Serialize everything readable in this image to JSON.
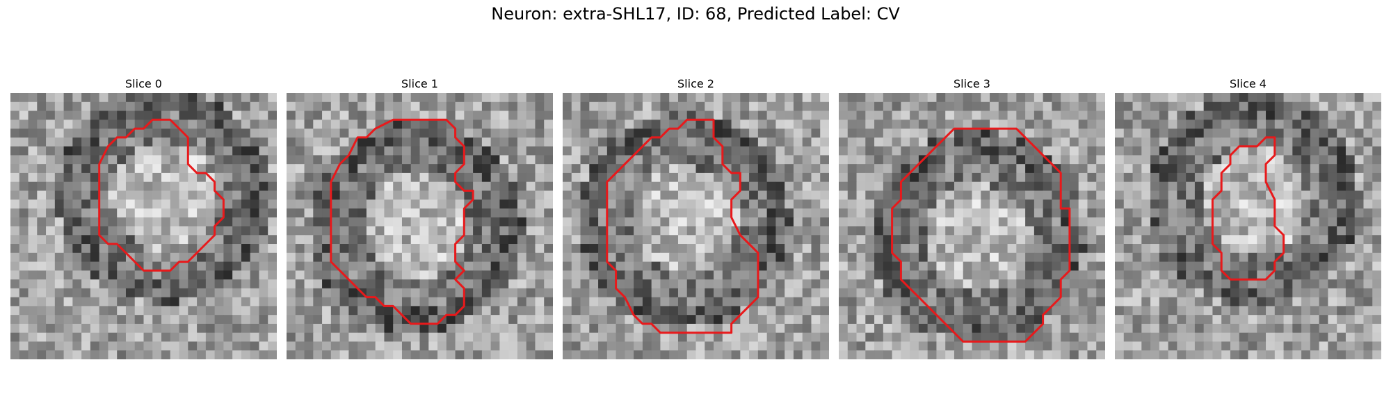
{
  "figure": {
    "title": "Neuron: extra-SHL17, ID: 68, Predicted Label: CV"
  },
  "contour_color": "#e8191b",
  "grid_cells": 30,
  "slices": [
    {
      "label": "Slice 0",
      "contour": [
        [
          10,
          8
        ],
        [
          11,
          6
        ],
        [
          12,
          5
        ],
        [
          13,
          5
        ],
        [
          14,
          4
        ],
        [
          15,
          4
        ],
        [
          16,
          3
        ],
        [
          18,
          3
        ],
        [
          19,
          4
        ],
        [
          20,
          5
        ],
        [
          20,
          8
        ],
        [
          21,
          9
        ],
        [
          22,
          9
        ],
        [
          23,
          10
        ],
        [
          23,
          11
        ],
        [
          24,
          12
        ],
        [
          24,
          14
        ],
        [
          23,
          15
        ],
        [
          23,
          16
        ],
        [
          22,
          17
        ],
        [
          21,
          18
        ],
        [
          20,
          19
        ],
        [
          19,
          19
        ],
        [
          18,
          20
        ],
        [
          15,
          20
        ],
        [
          14,
          19
        ],
        [
          13,
          18
        ],
        [
          12,
          17
        ],
        [
          11,
          17
        ],
        [
          10,
          16
        ],
        [
          10,
          9
        ]
      ],
      "seed": 11
    },
    {
      "label": "Slice 1",
      "contour": [
        [
          5,
          10
        ],
        [
          6,
          8
        ],
        [
          7,
          7
        ],
        [
          8,
          5
        ],
        [
          9,
          5
        ],
        [
          10,
          4
        ],
        [
          12,
          3
        ],
        [
          12,
          3
        ],
        [
          18,
          3
        ],
        [
          19,
          4
        ],
        [
          19,
          5
        ],
        [
          20,
          6
        ],
        [
          20,
          8
        ],
        [
          19,
          9
        ],
        [
          19,
          10
        ],
        [
          20,
          11
        ],
        [
          21,
          11
        ],
        [
          21,
          12
        ],
        [
          20,
          13
        ],
        [
          20,
          16
        ],
        [
          19,
          17
        ],
        [
          19,
          19
        ],
        [
          20,
          20
        ],
        [
          19,
          21
        ],
        [
          20,
          22
        ],
        [
          20,
          23
        ],
        [
          20,
          24
        ],
        [
          19,
          25
        ],
        [
          18,
          25
        ],
        [
          17,
          26
        ],
        [
          14,
          26
        ],
        [
          13,
          25
        ],
        [
          12,
          24
        ],
        [
          11,
          24
        ],
        [
          10,
          23
        ],
        [
          9,
          23
        ],
        [
          8,
          22
        ],
        [
          7,
          21
        ],
        [
          6,
          20
        ],
        [
          5,
          19
        ],
        [
          5,
          12
        ]
      ],
      "seed": 23
    },
    {
      "label": "Slice 2",
      "contour": [
        [
          5,
          11
        ],
        [
          5,
          10
        ],
        [
          6,
          9
        ],
        [
          7,
          8
        ],
        [
          8,
          7
        ],
        [
          9,
          6
        ],
        [
          10,
          5
        ],
        [
          11,
          5
        ],
        [
          12,
          4
        ],
        [
          13,
          4
        ],
        [
          14,
          3
        ],
        [
          17,
          3
        ],
        [
          17,
          5
        ],
        [
          18,
          6
        ],
        [
          18,
          8
        ],
        [
          19,
          9
        ],
        [
          20,
          9
        ],
        [
          20,
          10
        ],
        [
          20,
          11
        ],
        [
          19,
          12
        ],
        [
          19,
          14
        ],
        [
          20,
          16
        ],
        [
          21,
          17
        ],
        [
          22,
          18
        ],
        [
          22,
          20
        ],
        [
          22,
          23
        ],
        [
          21,
          24
        ],
        [
          20,
          25
        ],
        [
          19,
          26
        ],
        [
          19,
          27
        ],
        [
          11,
          27
        ],
        [
          10,
          26
        ],
        [
          9,
          26
        ],
        [
          8,
          25
        ],
        [
          7,
          23
        ],
        [
          6,
          22
        ],
        [
          6,
          20
        ],
        [
          5,
          19
        ],
        [
          5,
          17
        ],
        [
          5,
          12
        ]
      ],
      "seed": 37
    },
    {
      "label": "Slice 3",
      "contour": [
        [
          6,
          14
        ],
        [
          6,
          13
        ],
        [
          7,
          12
        ],
        [
          7,
          10
        ],
        [
          8,
          9
        ],
        [
          9,
          8
        ],
        [
          10,
          7
        ],
        [
          11,
          6
        ],
        [
          12,
          5
        ],
        [
          13,
          4
        ],
        [
          15,
          4
        ],
        [
          20,
          4
        ],
        [
          21,
          5
        ],
        [
          22,
          6
        ],
        [
          23,
          7
        ],
        [
          24,
          8
        ],
        [
          25,
          9
        ],
        [
          25,
          13
        ],
        [
          26,
          13
        ],
        [
          26,
          20
        ],
        [
          25,
          21
        ],
        [
          25,
          22
        ],
        [
          25,
          23
        ],
        [
          24,
          24
        ],
        [
          23,
          25
        ],
        [
          23,
          26
        ],
        [
          22,
          27
        ],
        [
          21,
          28
        ],
        [
          16,
          28
        ],
        [
          14,
          28
        ],
        [
          13,
          27
        ],
        [
          12,
          26
        ],
        [
          11,
          25
        ],
        [
          10,
          24
        ],
        [
          9,
          23
        ],
        [
          8,
          22
        ],
        [
          7,
          21
        ],
        [
          7,
          19
        ],
        [
          6,
          18
        ],
        [
          6,
          14
        ]
      ],
      "seed": 53
    },
    {
      "label": "Slice 4",
      "contour": [
        [
          12,
          11
        ],
        [
          12,
          9
        ],
        [
          13,
          8
        ],
        [
          13,
          7
        ],
        [
          14,
          6
        ],
        [
          15,
          6
        ],
        [
          16,
          6
        ],
        [
          17,
          5
        ],
        [
          17,
          5
        ],
        [
          18,
          5
        ],
        [
          18,
          7
        ],
        [
          17,
          8
        ],
        [
          17,
          10
        ],
        [
          17,
          10
        ],
        [
          18,
          12
        ],
        [
          18,
          14
        ],
        [
          18,
          15
        ],
        [
          19,
          16
        ],
        [
          19,
          18
        ],
        [
          18,
          19
        ],
        [
          18,
          20
        ],
        [
          17,
          21
        ],
        [
          13,
          21
        ],
        [
          12,
          20
        ],
        [
          12,
          18
        ],
        [
          11,
          17
        ],
        [
          11,
          12
        ]
      ],
      "seed": 71
    }
  ]
}
